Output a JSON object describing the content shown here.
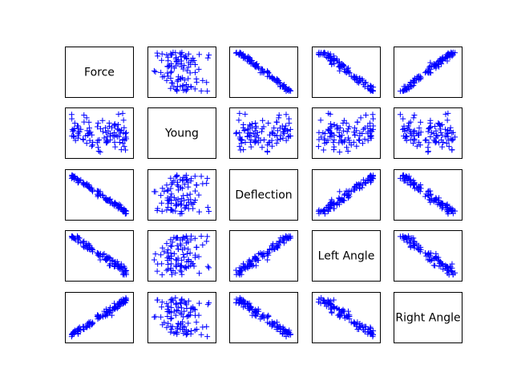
{
  "chart_data": {
    "type": "scatter",
    "title": "",
    "marker": "+",
    "marker_color": "#0000ff",
    "variables": [
      "Force",
      "Young",
      "Deflection",
      "Left Angle",
      "Right Angle"
    ],
    "grid": false,
    "legend": "none",
    "ticks": "hidden",
    "points_per_panel": 100,
    "pairwise_trend": {
      "Force|Young": "none",
      "Force|Deflection": "strong-negative",
      "Force|Left Angle": "strong-negative",
      "Force|Right Angle": "strong-positive",
      "Young|Deflection": "none",
      "Young|Left Angle": "none",
      "Young|Right Angle": "none",
      "Deflection|Left Angle": "strong-positive",
      "Deflection|Right Angle": "strong-negative",
      "Left Angle|Right Angle": "strong-negative"
    }
  }
}
